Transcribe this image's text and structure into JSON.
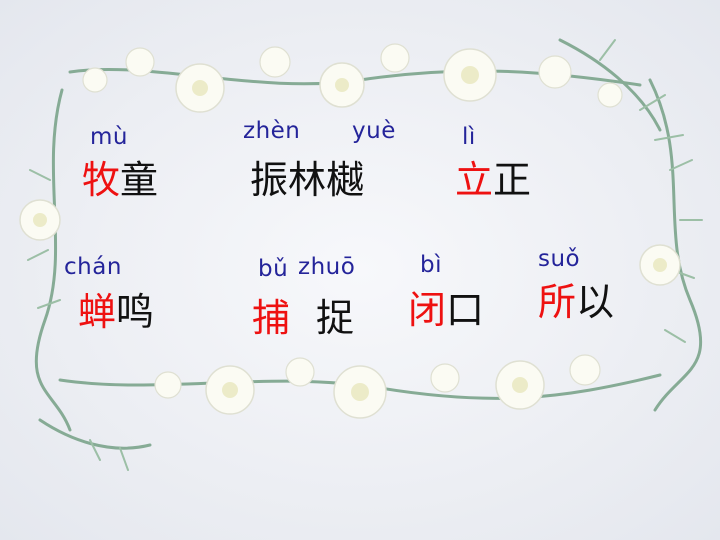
{
  "colors": {
    "pinyin": "#24249a",
    "highlight": "#ee1111",
    "text": "#111111",
    "background": "#eef0f4",
    "flower": "#fbfbf3",
    "stem": "#7fa58e"
  },
  "decoration": "flower-frame",
  "rows": [
    [
      {
        "pinyin": "mù",
        "red": "牧",
        "rest": "童"
      },
      {
        "pinyin_a": "zhèn",
        "pinyin_b": "yuè",
        "text": "振林樾"
      },
      {
        "pinyin": "lì",
        "red": "立",
        "rest": "正"
      }
    ],
    [
      {
        "pinyin": "chán",
        "red": "蝉",
        "rest": "鸣"
      },
      {
        "pinyin_a": "bǔ",
        "pinyin_b": "zhuō",
        "red": "捕",
        "rest": "捉"
      },
      {
        "pinyin": "bì",
        "red": "闭",
        "rest": "口"
      },
      {
        "pinyin": "suǒ",
        "red": "所",
        "rest": "以"
      }
    ]
  ]
}
